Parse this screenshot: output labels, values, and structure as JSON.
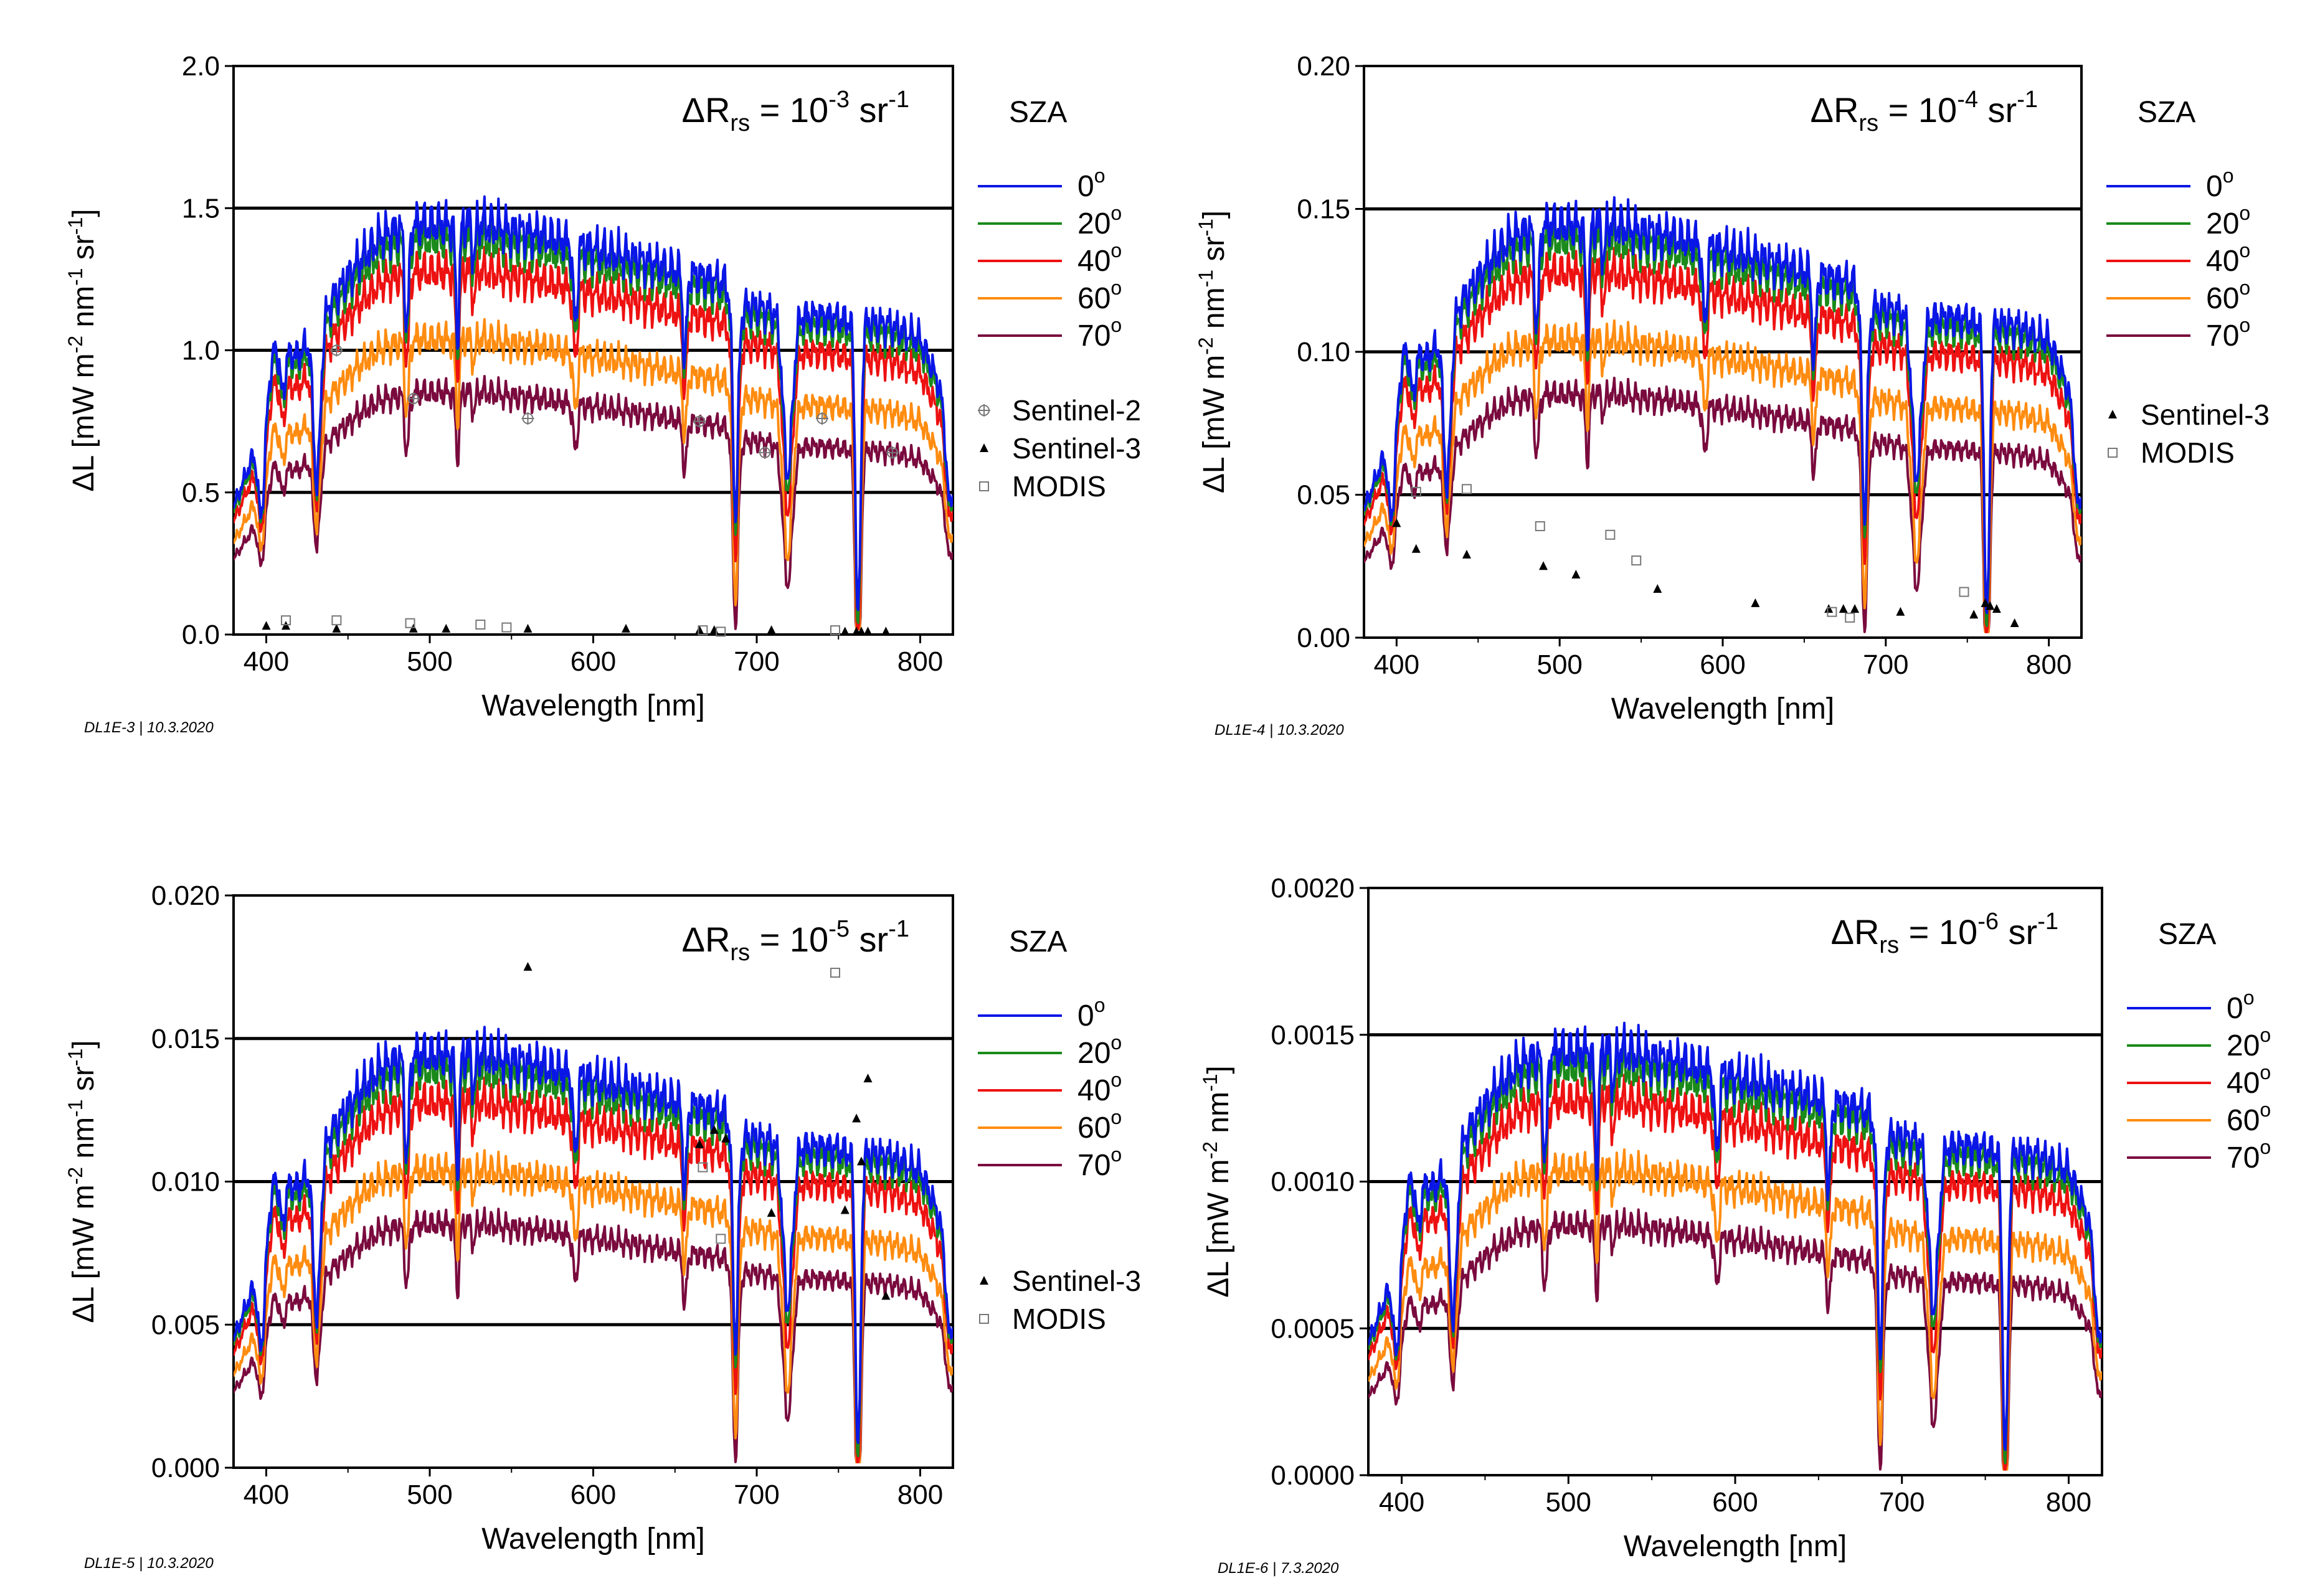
{
  "colors": {
    "sza_0": "#0a16e6",
    "sza_20": "#1a8a1a",
    "sza_40": "#ee1111",
    "sza_60": "#ff8c10",
    "sza_70": "#7a0a3e",
    "sentinel2": "#777777",
    "sentinel3": "#000000",
    "modis": "#777777"
  },
  "chart_data": [
    {
      "type": "line",
      "id": "p1",
      "annotation": {
        "prefix": "ΔR",
        "sub": "rs",
        "mid": " = 10",
        "sup1": "-3",
        "unit": " sr",
        "sup2": "-1"
      },
      "xlabel": "Wavelength [nm]",
      "ylabel": {
        "base": "ΔL [mW m",
        "s1": "-2",
        "m1": " nm",
        "s2": "-1",
        "m2": " sr",
        "s3": "-1",
        "end": "]"
      },
      "xlim": [
        380,
        820
      ],
      "ylim": [
        0,
        2
      ],
      "xticks": [
        "400",
        "500",
        "600",
        "700",
        "800"
      ],
      "yticks": [
        "0.0",
        "0.5",
        "1.0",
        "1.5",
        "2.0"
      ],
      "grid_y": [
        0.5,
        1.0,
        1.5
      ],
      "legend_title": "SZA",
      "scale": 1,
      "series": [
        {
          "name": "0",
          "sup": "o",
          "factor": 1.0
        },
        {
          "name": "20",
          "sup": "o",
          "factor": 0.965
        },
        {
          "name": "40",
          "sup": "o",
          "factor": 0.885
        },
        {
          "name": "60",
          "sup": "o",
          "factor": 0.72
        },
        {
          "name": "70",
          "sup": "o",
          "factor": 0.59
        }
      ],
      "markers": [
        {
          "name": "Sentinel-2",
          "symbol": "cross",
          "points": [
            [
              443,
              1.0
            ],
            [
              490,
              0.83
            ],
            [
              560,
              0.76
            ],
            [
              665,
              0.75
            ],
            [
              705,
              0.64
            ],
            [
              740,
              0.76
            ],
            [
              783,
              0.64
            ]
          ]
        },
        {
          "name": "Sentinel-3",
          "symbol": "triangle",
          "points": [
            [
              400,
              0.03
            ],
            [
              412,
              0.03
            ],
            [
              443,
              0.02
            ],
            [
              490,
              0.02
            ],
            [
              510,
              0.02
            ],
            [
              560,
              0.02
            ],
            [
              620,
              0.02
            ],
            [
              665,
              0.015
            ],
            [
              674,
              0.015
            ],
            [
              709,
              0.015
            ],
            [
              754,
              0.01
            ],
            [
              761,
              0.01
            ],
            [
              764,
              0.01
            ],
            [
              768,
              0.01
            ],
            [
              779,
              0.01
            ]
          ]
        },
        {
          "name": "MODIS",
          "symbol": "square",
          "points": [
            [
              412,
              0.05
            ],
            [
              443,
              0.05
            ],
            [
              488,
              0.04
            ],
            [
              531,
              0.035
            ],
            [
              547,
              0.025
            ],
            [
              667,
              0.015
            ],
            [
              678,
              0.01
            ],
            [
              748,
              0.015
            ]
          ]
        }
      ],
      "footnote": "DL1E-3 | 10.3.2020"
    },
    {
      "type": "line",
      "id": "p2",
      "annotation": {
        "prefix": "ΔR",
        "sub": "rs",
        "mid": " = 10",
        "sup1": "-4",
        "unit": " sr",
        "sup2": "-1"
      },
      "xlabel": "Wavelength [nm]",
      "ylabel": {
        "base": "ΔL [mW m",
        "s1": "-2",
        "m1": " nm",
        "s2": "-1",
        "m2": " sr",
        "s3": "-1",
        "end": "]"
      },
      "xlim": [
        380,
        820
      ],
      "ylim": [
        0,
        0.2
      ],
      "xticks": [
        "400",
        "500",
        "600",
        "700",
        "800"
      ],
      "yticks": [
        "0.00",
        "0.05",
        "0.10",
        "0.15",
        "0.20"
      ],
      "grid_y": [
        0.05,
        0.1,
        0.15
      ],
      "legend_title": "SZA",
      "scale": 0.1,
      "series": [
        {
          "name": "0",
          "sup": "o",
          "factor": 1.0
        },
        {
          "name": "20",
          "sup": "o",
          "factor": 0.965
        },
        {
          "name": "40",
          "sup": "o",
          "factor": 0.885
        },
        {
          "name": "60",
          "sup": "o",
          "factor": 0.72
        },
        {
          "name": "70",
          "sup": "o",
          "factor": 0.59
        }
      ],
      "markers": [
        {
          "name": "Sentinel-3",
          "symbol": "triangle",
          "points": [
            [
              400,
              0.04
            ],
            [
              412,
              0.031
            ],
            [
              443,
              0.029
            ],
            [
              490,
              0.025
            ],
            [
              510,
              0.022
            ],
            [
              560,
              0.017
            ],
            [
              620,
              0.012
            ],
            [
              665,
              0.01
            ],
            [
              674,
              0.01
            ],
            [
              681,
              0.01
            ],
            [
              709,
              0.009
            ],
            [
              754,
              0.008
            ],
            [
              761,
              0.012
            ],
            [
              764,
              0.011
            ],
            [
              768,
              0.01
            ],
            [
              779,
              0.005
            ]
          ]
        },
        {
          "name": "MODIS",
          "symbol": "square",
          "points": [
            [
              412,
              0.051
            ],
            [
              443,
              0.052
            ],
            [
              488,
              0.039
            ],
            [
              531,
              0.036
            ],
            [
              547,
              0.027
            ],
            [
              667,
              0.009
            ],
            [
              678,
              0.007
            ],
            [
              748,
              0.016
            ]
          ]
        }
      ],
      "footnote": "DL1E-4 | 10.3.2020"
    },
    {
      "type": "line",
      "id": "p3",
      "annotation": {
        "prefix": "ΔR",
        "sub": "rs",
        "mid": " = 10",
        "sup1": "-5",
        "unit": " sr",
        "sup2": "-1"
      },
      "xlabel": "Wavelength [nm]",
      "ylabel": {
        "base": "ΔL [mW m",
        "s1": "-2",
        "m1": " nm",
        "s2": "-1",
        "m2": " sr",
        "s3": "-1",
        "end": "]"
      },
      "xlim": [
        380,
        820
      ],
      "ylim": [
        0,
        0.02
      ],
      "xticks": [
        "400",
        "500",
        "600",
        "700",
        "800"
      ],
      "yticks": [
        "0.000",
        "0.005",
        "0.010",
        "0.015",
        "0.020"
      ],
      "grid_y": [
        0.005,
        0.01,
        0.015
      ],
      "legend_title": "SZA",
      "scale": 0.01,
      "series": [
        {
          "name": "0",
          "sup": "o",
          "factor": 1.0
        },
        {
          "name": "20",
          "sup": "o",
          "factor": 0.965
        },
        {
          "name": "40",
          "sup": "o",
          "factor": 0.885
        },
        {
          "name": "60",
          "sup": "o",
          "factor": 0.72
        },
        {
          "name": "70",
          "sup": "o",
          "factor": 0.59
        }
      ],
      "markers": [
        {
          "name": "Sentinel-3",
          "symbol": "triangle",
          "points": [
            [
              560,
              0.0175
            ],
            [
              665,
              0.0113
            ],
            [
              674,
              0.0118
            ],
            [
              681,
              0.0115
            ],
            [
              709,
              0.0089
            ],
            [
              754,
              0.009
            ],
            [
              761,
              0.0122
            ],
            [
              764,
              0.0107
            ],
            [
              768,
              0.0136
            ],
            [
              779,
              0.006
            ]
          ]
        },
        {
          "name": "MODIS",
          "symbol": "square",
          "points": [
            [
              667,
              0.0105
            ],
            [
              678,
              0.008
            ],
            [
              748,
              0.0173
            ]
          ]
        }
      ],
      "footnote": "DL1E-5 | 10.3.2020"
    },
    {
      "type": "line",
      "id": "p4",
      "annotation": {
        "prefix": "ΔR",
        "sub": "rs",
        "mid": " = 10",
        "sup1": "-6",
        "unit": " sr",
        "sup2": "-1"
      },
      "xlabel": "Wavelength [nm]",
      "ylabel": {
        "base": "ΔL [mW m",
        "s1": "-2",
        "m1": " nm",
        "s2": "-1",
        "m2": "",
        "s3": "",
        "end": "]"
      },
      "xlim": [
        380,
        820
      ],
      "ylim": [
        0,
        0.002
      ],
      "xticks": [
        "400",
        "500",
        "600",
        "700",
        "800"
      ],
      "yticks": [
        "0.0000",
        "0.0005",
        "0.0010",
        "0.0015",
        "0.0020"
      ],
      "grid_y": [
        0.0005,
        0.001,
        0.0015
      ],
      "legend_title": "SZA",
      "scale": 0.001,
      "series": [
        {
          "name": "0",
          "sup": "o",
          "factor": 1.0
        },
        {
          "name": "20",
          "sup": "o",
          "factor": 0.965
        },
        {
          "name": "40",
          "sup": "o",
          "factor": 0.885
        },
        {
          "name": "60",
          "sup": "o",
          "factor": 0.72
        },
        {
          "name": "70",
          "sup": "o",
          "factor": 0.59
        }
      ],
      "markers": [],
      "footnote": "DL1E-6 | 7.3.2020"
    }
  ]
}
